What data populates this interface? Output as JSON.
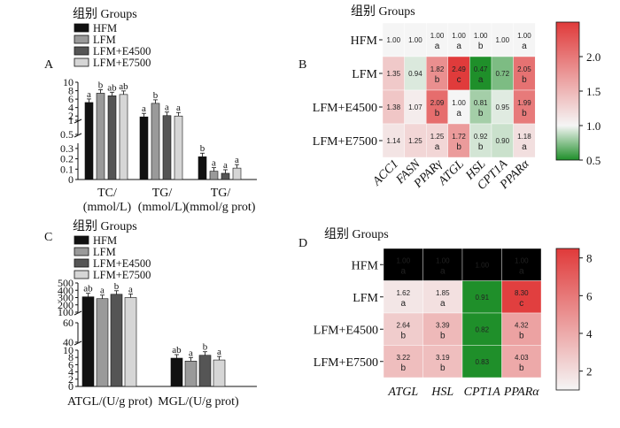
{
  "legend_title": "组别 Groups",
  "groups": [
    "HFM",
    "LFM",
    "LFM+E4500",
    "LFM+E7500"
  ],
  "colors": {
    "HFM": "#111111",
    "LFM": "#9a9a9a",
    "LFM+E4500": "#555555",
    "LFM+E7500": "#d6d6d6",
    "heat_low": "#1f8f2a",
    "heat_mid": "#f5f5f5",
    "heat_high": "#e03a3a"
  },
  "chart_data": [
    {
      "panel": "A",
      "type": "bar",
      "categories": [
        "TC/\n(mmol/L)",
        "TG/\n(mmol/L)",
        "TG/\n(mmol/g prot)"
      ],
      "series": [
        {
          "name": "HFM",
          "values": [
            5.2,
            1.8,
            0.22
          ],
          "letters": [
            "a",
            "a",
            "b"
          ]
        },
        {
          "name": "LFM",
          "values": [
            7.4,
            5.0,
            0.08
          ],
          "letters": [
            "b",
            "b",
            "a"
          ]
        },
        {
          "name": "LFM+E4500",
          "values": [
            6.8,
            2.1,
            0.06
          ],
          "letters": [
            "ab",
            "a",
            "a"
          ]
        },
        {
          "name": "LFM+E7500",
          "values": [
            7.1,
            2.0,
            0.11
          ],
          "letters": [
            "ab",
            "a",
            "a"
          ]
        }
      ],
      "y_ticks": [
        "0",
        "0.1",
        "0.2",
        "0.3",
        "0.5",
        "1",
        "2",
        "4",
        "6",
        "8",
        "10"
      ]
    },
    {
      "panel": "B",
      "type": "heatmap",
      "rows": [
        "HFM",
        "LFM",
        "LFM+E4500",
        "LFM+E7500"
      ],
      "cols": [
        "ACC1",
        "FASN",
        "PPARγ",
        "ATGL",
        "HSL",
        "CPT1A",
        "PPARα"
      ],
      "values": [
        [
          1.0,
          1.0,
          1.0,
          1.0,
          1.0,
          1.0,
          1.0
        ],
        [
          1.35,
          0.94,
          1.82,
          2.49,
          0.47,
          0.72,
          2.05
        ],
        [
          1.38,
          1.07,
          2.09,
          1.0,
          0.81,
          0.95,
          1.99
        ],
        [
          1.14,
          1.25,
          1.25,
          1.72,
          0.92,
          0.9,
          1.18
        ]
      ],
      "letters": [
        [
          "",
          "",
          "a",
          "a",
          "b",
          "",
          "a"
        ],
        [
          "",
          "",
          "b",
          "c",
          "a",
          "",
          "b"
        ],
        [
          "",
          "",
          "b",
          "a",
          "b",
          "",
          "b"
        ],
        [
          "",
          "",
          "a",
          "b",
          "b",
          "",
          "a"
        ]
      ],
      "colorbar": {
        "min": 0.5,
        "max": 2.5,
        "ticks": [
          "2.0",
          "1.5",
          "1.0",
          "0.5"
        ]
      }
    },
    {
      "panel": "C",
      "type": "bar",
      "categories": [
        "ATGL/(U/g prot)",
        "MGL/(U/g prot)"
      ],
      "series": [
        {
          "name": "HFM",
          "values": [
            310,
            7.8
          ],
          "letters": [
            "ab",
            "ab"
          ]
        },
        {
          "name": "LFM",
          "values": [
            285,
            7.0
          ],
          "letters": [
            "a",
            "a"
          ]
        },
        {
          "name": "LFM+E4500",
          "values": [
            345,
            8.6
          ],
          "letters": [
            "b",
            "b"
          ]
        },
        {
          "name": "LFM+E7500",
          "values": [
            300,
            7.3
          ],
          "letters": [
            "a",
            "a"
          ]
        }
      ],
      "y_ticks": [
        "0",
        "2",
        "4",
        "6",
        "8",
        "10",
        "40",
        "60",
        "100",
        "200",
        "300",
        "400",
        "500"
      ]
    },
    {
      "panel": "D",
      "type": "heatmap",
      "rows": [
        "HFM",
        "LFM",
        "LFM+E4500",
        "LFM+E7500"
      ],
      "cols": [
        "ATGL",
        "HSL",
        "CPT1A",
        "PPARα"
      ],
      "values": [
        [
          1.0,
          1.0,
          1.0,
          1.0
        ],
        [
          1.62,
          1.85,
          0.91,
          8.3
        ],
        [
          2.64,
          3.39,
          0.82,
          4.32
        ],
        [
          3.22,
          3.19,
          0.83,
          4.03
        ]
      ],
      "letters": [
        [
          "a",
          "a",
          "",
          "a"
        ],
        [
          "a",
          "a",
          "",
          "c"
        ],
        [
          "b",
          "b",
          "",
          "b"
        ],
        [
          "b",
          "b",
          "",
          "b"
        ]
      ],
      "colorbar": {
        "min": 1,
        "max": 8.5,
        "ticks": [
          "8",
          "6",
          "4",
          "2"
        ]
      }
    }
  ]
}
